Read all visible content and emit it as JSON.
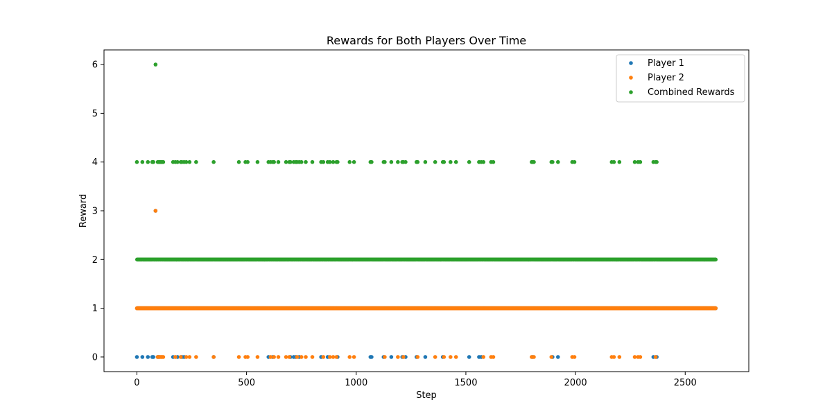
{
  "chart_data": {
    "type": "scatter",
    "title": "Rewards for Both Players Over Time",
    "xlabel": "Step",
    "ylabel": "Reward",
    "xlim": [
      -150,
      2790
    ],
    "ylim": [
      -0.3,
      6.3
    ],
    "xticks": [
      0,
      500,
      1000,
      1500,
      2000,
      2500
    ],
    "yticks": [
      0,
      1,
      2,
      3,
      4,
      5,
      6
    ],
    "grid": false,
    "legend_position": "top-right",
    "n_steps": 2640,
    "series": [
      {
        "name": "Player 1",
        "color": "#1f77b4",
        "default_value": 1,
        "zero_at": [
          0,
          25,
          50,
          70,
          75,
          95,
          100,
          165,
          185,
          205,
          215,
          350,
          600,
          620,
          700,
          715,
          725,
          740,
          840,
          870,
          915,
          1065,
          1070,
          1125,
          1160,
          1210,
          1225,
          1275,
          1315,
          1395,
          1515,
          1560,
          1570,
          1805,
          1895,
          1920,
          2355,
          2370
        ],
        "three_at": [
          85
        ]
      },
      {
        "name": "Player 2",
        "color": "#ff7f0e",
        "default_value": 1,
        "zero_at": [
          85,
          95,
          100,
          105,
          110,
          115,
          120,
          175,
          200,
          225,
          240,
          270,
          350,
          465,
          495,
          505,
          550,
          610,
          625,
          645,
          680,
          695,
          730,
          750,
          770,
          800,
          850,
          880,
          895,
          910,
          970,
          990,
          1130,
          1190,
          1215,
          1280,
          1360,
          1400,
          1430,
          1455,
          1580,
          1615,
          1625,
          1800,
          1810,
          1890,
          1985,
          1995,
          2165,
          2175,
          2200,
          2270,
          2285,
          2295,
          2365
        ],
        "three_at": [
          85
        ]
      },
      {
        "name": "Combined Rewards",
        "color": "#2ca02c",
        "default_value": 2,
        "four_at": [
          0,
          25,
          50,
          70,
          75,
          95,
          100,
          105,
          110,
          115,
          120,
          165,
          175,
          185,
          200,
          205,
          215,
          225,
          240,
          270,
          350,
          465,
          495,
          505,
          550,
          600,
          610,
          620,
          625,
          645,
          680,
          695,
          700,
          715,
          725,
          730,
          740,
          750,
          770,
          800,
          840,
          850,
          870,
          880,
          895,
          910,
          915,
          970,
          990,
          1065,
          1070,
          1125,
          1130,
          1160,
          1190,
          1210,
          1215,
          1225,
          1275,
          1280,
          1315,
          1360,
          1395,
          1400,
          1430,
          1455,
          1515,
          1560,
          1570,
          1580,
          1615,
          1625,
          1800,
          1805,
          1810,
          1890,
          1895,
          1920,
          1985,
          1995,
          2165,
          2175,
          2200,
          2270,
          2285,
          2295,
          2355,
          2365,
          2370
        ],
        "six_at": [
          85
        ]
      }
    ]
  }
}
